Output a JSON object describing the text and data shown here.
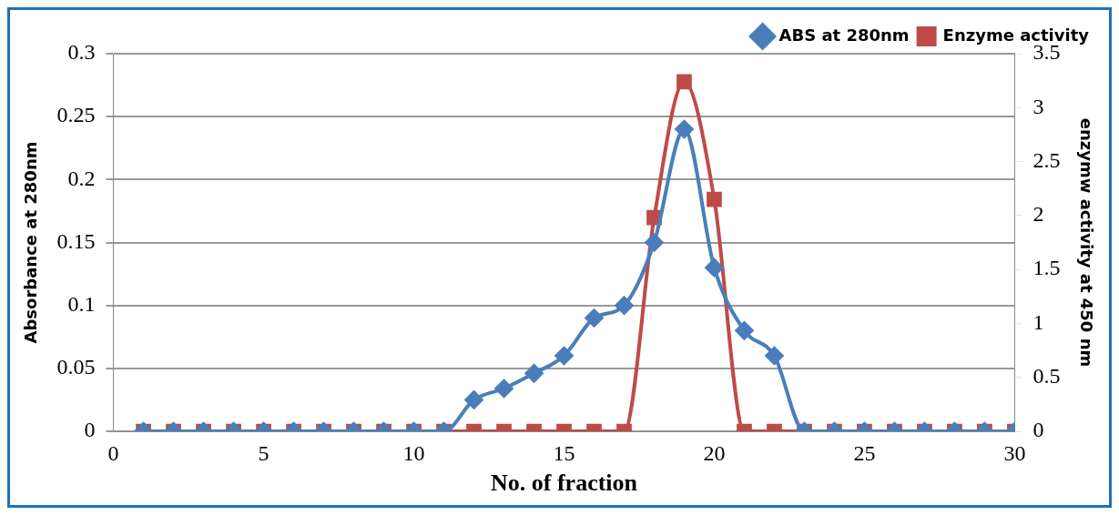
{
  "chart_data": {
    "type": "line",
    "xlabel": "No. of fraction",
    "ylabel": "Absorbance at 280nm",
    "y2label": "enzymw activity at 450 nm",
    "x": [
      1,
      2,
      3,
      4,
      5,
      6,
      7,
      8,
      9,
      10,
      11,
      12,
      13,
      14,
      15,
      16,
      17,
      18,
      19,
      20,
      21,
      22,
      23,
      24,
      25,
      26,
      27,
      28,
      29,
      30
    ],
    "series": [
      {
        "name": "ABS at 280nm",
        "color": "#4a7ebb",
        "marker": "diamond",
        "values": [
          0,
          0,
          0,
          0,
          0,
          0,
          0,
          0,
          0,
          0,
          0,
          0.025,
          0.034,
          0.046,
          0.06,
          0.09,
          0.1,
          0.15,
          0.24,
          0.13,
          0.08,
          0.06,
          0,
          0,
          0,
          0,
          0,
          0,
          0,
          0
        ]
      },
      {
        "name": "Enzyme activity",
        "color": "#be4b48",
        "marker": "square",
        "axis": "y2",
        "values": [
          0,
          0,
          0,
          0,
          0,
          0,
          0,
          0,
          0,
          0,
          0,
          0,
          0,
          0,
          0,
          0,
          0,
          1.98,
          3.24,
          2.15,
          0,
          0,
          0,
          0,
          0,
          0,
          0,
          0,
          0,
          0
        ]
      }
    ],
    "xlim": [
      0,
      30
    ],
    "xticks": [
      0,
      5,
      10,
      15,
      20,
      25,
      30
    ],
    "ylim": [
      0,
      0.3
    ],
    "yticks": [
      0,
      0.05,
      0.1,
      0.15,
      0.2,
      0.25,
      0.3
    ],
    "y2lim": [
      0,
      3.5
    ],
    "y2ticks": [
      0,
      0.5,
      1,
      1.5,
      2,
      2.5,
      3,
      3.5
    ],
    "grid": "y",
    "legend": "top right"
  }
}
